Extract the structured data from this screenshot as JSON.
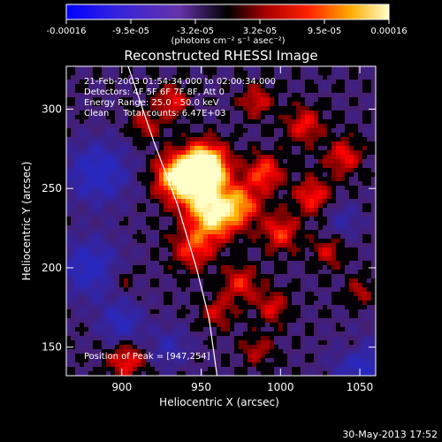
{
  "chart_data": {
    "type": "heatmap",
    "title": "Reconstructed RHESSI Image",
    "xlabel": "Heliocentric X (arcsec)",
    "ylabel": "Heliocentric Y (arcsec)",
    "xlim": [
      865,
      1060
    ],
    "ylim": [
      132,
      327
    ],
    "x_ticks": [
      900,
      950,
      1000,
      1050
    ],
    "y_ticks": [
      150,
      200,
      250,
      300
    ],
    "colorbar": {
      "min": -0.00016,
      "max": 0.00016,
      "ticks": [
        "-0.00016",
        "-9.5e-05",
        "-3.2e-05",
        "3.2e-05",
        "9.5e-05",
        "0.00016"
      ],
      "unit_label": "(photons cm⁻² s⁻¹ asec⁻²)"
    },
    "annotations": [
      "21-Feb-2003 01:54:34.000 to 02:00:34.000",
      "Detectors: 4F 5F 6F 7F 8F, Att 0",
      "Energy Range: 25.0 - 50.0 keV",
      "Clean     Total counts: 6.47E+03"
    ],
    "peak_label": "Position of Peak = [947,254]",
    "peak": [
      947,
      254
    ],
    "limb_curve": [
      [
        904,
        327
      ],
      [
        920,
        280
      ],
      [
        935,
        240
      ],
      [
        947,
        200
      ],
      [
        955,
        168
      ],
      [
        960,
        132
      ]
    ],
    "grid": false
  },
  "footer": {
    "date": "30-May-2013 17:52"
  }
}
